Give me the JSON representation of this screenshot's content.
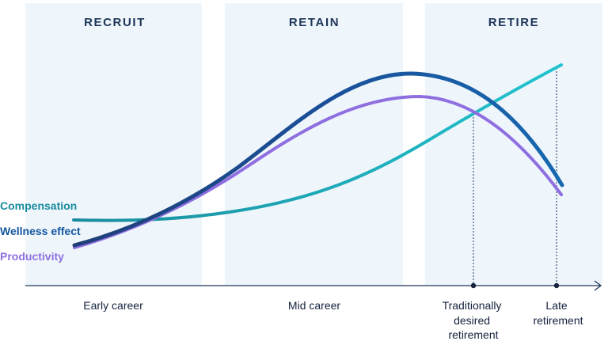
{
  "phases": [
    "RECRUIT",
    "RETAIN",
    "RETIRE"
  ],
  "series_labels": {
    "compensation": "Compensation",
    "wellness": "Wellness effect",
    "productivity": "Productivity"
  },
  "stages": {
    "early": "Early career",
    "mid": "Mid career",
    "traditional": [
      "Traditionally",
      "desired",
      "retirement"
    ],
    "late": [
      "Late",
      "retirement"
    ]
  },
  "colors": {
    "panel": "#eef6fc",
    "compensation": "#1a9aab",
    "compensation_late": "#22c1cc",
    "wellness": "#14569e",
    "productivity": "#8f6fe0",
    "axis": "#1d3557",
    "text": "#14213d"
  },
  "icons": {
    "axis_arrow": "arrow-right-icon",
    "marker": "dot-icon"
  }
}
